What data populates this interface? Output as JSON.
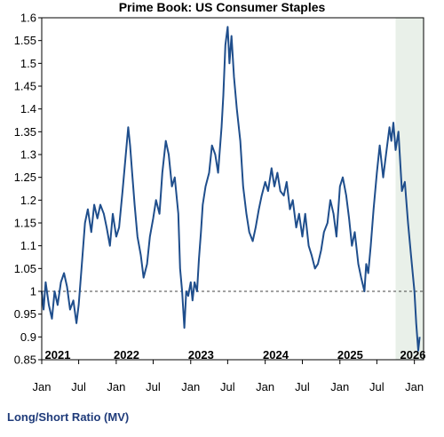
{
  "chart_data": {
    "type": "line",
    "title": "Prime Book: US Consumer Staples",
    "ylabel": "",
    "xlabel": "",
    "ylim": [
      0.85,
      1.6
    ],
    "y_ticks": [
      "0.85",
      "0.9",
      "0.95",
      "1",
      "1.05",
      "1.1",
      "1.15",
      "1.2",
      "1.25",
      "1.3",
      "1.35",
      "1.4",
      "1.45",
      "1.5",
      "1.55",
      "1.6"
    ],
    "month_ticks": [
      "Jan",
      "Jul",
      "Jan",
      "Jul",
      "Jan",
      "Jul",
      "Jan",
      "Jul",
      "Jan",
      "Jul",
      "Jan"
    ],
    "year_labels": [
      "2021",
      "2022",
      "2023",
      "2024",
      "2025",
      "2026"
    ],
    "reference_line": 1.0,
    "shaded_region": {
      "from": "2025-10-01",
      "to": "2026-02-15"
    },
    "line_color": "#1f4e8c",
    "series": [
      {
        "name": "Long/Short Ratio (MV)",
        "points": [
          [
            "2021-01-01",
            1.0
          ],
          [
            "2021-01-10",
            0.96
          ],
          [
            "2021-01-20",
            1.02
          ],
          [
            "2021-02-05",
            0.97
          ],
          [
            "2021-02-20",
            0.94
          ],
          [
            "2021-03-05",
            1.0
          ],
          [
            "2021-03-20",
            0.97
          ],
          [
            "2021-04-05",
            1.02
          ],
          [
            "2021-04-20",
            1.04
          ],
          [
            "2021-05-05",
            1.01
          ],
          [
            "2021-05-20",
            0.96
          ],
          [
            "2021-06-05",
            0.98
          ],
          [
            "2021-06-20",
            0.93
          ],
          [
            "2021-07-01",
            0.97
          ],
          [
            "2021-07-15",
            1.05
          ],
          [
            "2021-08-01",
            1.15
          ],
          [
            "2021-08-15",
            1.18
          ],
          [
            "2021-09-01",
            1.13
          ],
          [
            "2021-09-15",
            1.19
          ],
          [
            "2021-10-01",
            1.16
          ],
          [
            "2021-10-15",
            1.19
          ],
          [
            "2021-11-01",
            1.17
          ],
          [
            "2021-11-15",
            1.14
          ],
          [
            "2021-12-01",
            1.1
          ],
          [
            "2021-12-15",
            1.17
          ],
          [
            "2022-01-01",
            1.12
          ],
          [
            "2022-01-15",
            1.14
          ],
          [
            "2022-02-01",
            1.22
          ],
          [
            "2022-02-15",
            1.29
          ],
          [
            "2022-03-01",
            1.36
          ],
          [
            "2022-03-10",
            1.32
          ],
          [
            "2022-03-20",
            1.26
          ],
          [
            "2022-04-01",
            1.19
          ],
          [
            "2022-04-15",
            1.12
          ],
          [
            "2022-05-01",
            1.08
          ],
          [
            "2022-05-15",
            1.03
          ],
          [
            "2022-06-01",
            1.06
          ],
          [
            "2022-06-15",
            1.12
          ],
          [
            "2022-07-01",
            1.16
          ],
          [
            "2022-07-15",
            1.2
          ],
          [
            "2022-08-01",
            1.17
          ],
          [
            "2022-08-15",
            1.26
          ],
          [
            "2022-09-01",
            1.33
          ],
          [
            "2022-09-15",
            1.3
          ],
          [
            "2022-10-01",
            1.23
          ],
          [
            "2022-10-15",
            1.25
          ],
          [
            "2022-11-01",
            1.17
          ],
          [
            "2022-11-10",
            1.05
          ],
          [
            "2022-11-20",
            1.0
          ],
          [
            "2022-12-01",
            0.92
          ],
          [
            "2022-12-10",
            1.0
          ],
          [
            "2022-12-20",
            0.99
          ],
          [
            "2023-01-01",
            1.02
          ],
          [
            "2023-01-10",
            0.98
          ],
          [
            "2023-01-20",
            1.02
          ],
          [
            "2023-02-01",
            1.0
          ],
          [
            "2023-02-10",
            1.07
          ],
          [
            "2023-02-20",
            1.13
          ],
          [
            "2023-03-01",
            1.19
          ],
          [
            "2023-03-15",
            1.23
          ],
          [
            "2023-04-01",
            1.26
          ],
          [
            "2023-04-15",
            1.32
          ],
          [
            "2023-05-01",
            1.3
          ],
          [
            "2023-05-15",
            1.26
          ],
          [
            "2023-06-01",
            1.36
          ],
          [
            "2023-06-10",
            1.43
          ],
          [
            "2023-06-20",
            1.54
          ],
          [
            "2023-07-01",
            1.58
          ],
          [
            "2023-07-10",
            1.5
          ],
          [
            "2023-07-20",
            1.56
          ],
          [
            "2023-08-01",
            1.47
          ],
          [
            "2023-08-15",
            1.4
          ],
          [
            "2023-09-01",
            1.33
          ],
          [
            "2023-09-15",
            1.23
          ],
          [
            "2023-10-01",
            1.17
          ],
          [
            "2023-10-15",
            1.13
          ],
          [
            "2023-11-01",
            1.11
          ],
          [
            "2023-11-15",
            1.14
          ],
          [
            "2023-12-01",
            1.18
          ],
          [
            "2023-12-15",
            1.21
          ],
          [
            "2024-01-01",
            1.24
          ],
          [
            "2024-01-15",
            1.22
          ],
          [
            "2024-02-01",
            1.27
          ],
          [
            "2024-02-15",
            1.23
          ],
          [
            "2024-03-01",
            1.26
          ],
          [
            "2024-03-15",
            1.22
          ],
          [
            "2024-04-01",
            1.21
          ],
          [
            "2024-04-15",
            1.24
          ],
          [
            "2024-05-01",
            1.18
          ],
          [
            "2024-05-15",
            1.2
          ],
          [
            "2024-06-01",
            1.14
          ],
          [
            "2024-06-15",
            1.17
          ],
          [
            "2024-07-01",
            1.12
          ],
          [
            "2024-07-15",
            1.17
          ],
          [
            "2024-08-01",
            1.1
          ],
          [
            "2024-08-15",
            1.08
          ],
          [
            "2024-09-01",
            1.05
          ],
          [
            "2024-09-15",
            1.06
          ],
          [
            "2024-10-01",
            1.09
          ],
          [
            "2024-10-15",
            1.13
          ],
          [
            "2024-11-01",
            1.15
          ],
          [
            "2024-11-15",
            1.2
          ],
          [
            "2024-12-01",
            1.17
          ],
          [
            "2024-12-15",
            1.12
          ],
          [
            "2025-01-01",
            1.23
          ],
          [
            "2025-01-15",
            1.25
          ],
          [
            "2025-02-01",
            1.21
          ],
          [
            "2025-02-15",
            1.16
          ],
          [
            "2025-03-01",
            1.1
          ],
          [
            "2025-03-15",
            1.13
          ],
          [
            "2025-04-01",
            1.06
          ],
          [
            "2025-04-15",
            1.03
          ],
          [
            "2025-05-01",
            1.0
          ],
          [
            "2025-05-10",
            1.06
          ],
          [
            "2025-05-20",
            1.04
          ],
          [
            "2025-06-01",
            1.1
          ],
          [
            "2025-06-15",
            1.18
          ],
          [
            "2025-07-01",
            1.26
          ],
          [
            "2025-07-15",
            1.32
          ],
          [
            "2025-08-01",
            1.25
          ],
          [
            "2025-08-15",
            1.3
          ],
          [
            "2025-09-01",
            1.36
          ],
          [
            "2025-09-10",
            1.33
          ],
          [
            "2025-09-20",
            1.37
          ],
          [
            "2025-10-01",
            1.31
          ],
          [
            "2025-10-15",
            1.35
          ],
          [
            "2025-11-01",
            1.22
          ],
          [
            "2025-11-15",
            1.24
          ],
          [
            "2025-12-01",
            1.15
          ],
          [
            "2025-12-15",
            1.08
          ],
          [
            "2026-01-01",
            1.0
          ],
          [
            "2026-01-10",
            0.93
          ],
          [
            "2026-01-20",
            0.87
          ],
          [
            "2026-01-27",
            0.9
          ]
        ]
      }
    ],
    "legend_label": "Long/Short Ratio (MV)"
  }
}
